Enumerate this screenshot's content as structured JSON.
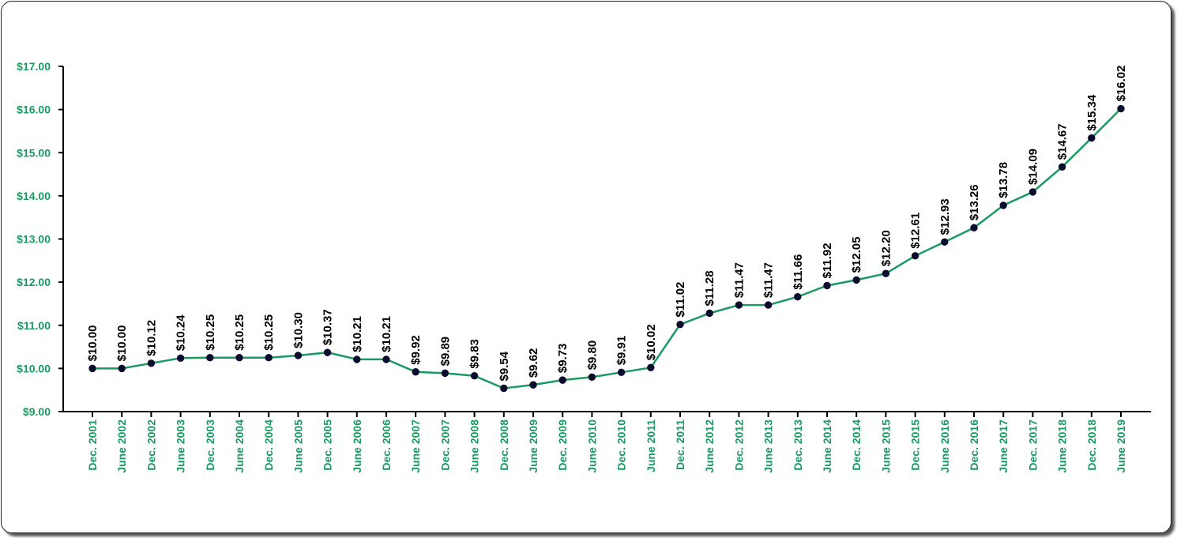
{
  "chart_data": {
    "type": "line",
    "title": "",
    "xlabel": "",
    "ylabel": "",
    "ylim": [
      9,
      17
    ],
    "yticks": [
      "$9.00",
      "$10.00",
      "$11.00",
      "$12.00",
      "$13.00",
      "$14.00",
      "$15.00",
      "$16.00",
      "$17.00"
    ],
    "grid": false,
    "legend": "none",
    "colors": {
      "line": "#1a9a62",
      "marker": "#0b0b2e",
      "axis_text": "#1a9a62",
      "data_label": "#000000"
    },
    "categories": [
      "Dec. 2001",
      "June 2002",
      "Dec. 2002",
      "June 2003",
      "Dec. 2003",
      "June 2004",
      "Dec. 2004",
      "June 2005",
      "Dec. 2005",
      "June 2006",
      "Dec. 2006",
      "June 2007",
      "Dec. 2007",
      "June 2008",
      "Dec. 2008",
      "June 2009",
      "Dec. 2009",
      "June 2010",
      "Dec. 2010",
      "June 2011",
      "Dec. 2011",
      "June 2012",
      "Dec. 2012",
      "June 2013",
      "Dec. 2013",
      "June 2014",
      "Dec. 2014",
      "June 2015",
      "Dec. 2015",
      "June 2016",
      "Dec. 2016",
      "June 2017",
      "Dec. 2017",
      "June 2018",
      "Dec. 2018",
      "June 2019"
    ],
    "values": [
      10.0,
      10.0,
      10.12,
      10.24,
      10.25,
      10.25,
      10.25,
      10.3,
      10.37,
      10.21,
      10.21,
      9.92,
      9.89,
      9.83,
      9.54,
      9.62,
      9.73,
      9.8,
      9.91,
      10.02,
      11.02,
      11.28,
      11.47,
      11.47,
      11.66,
      11.92,
      12.05,
      12.2,
      12.61,
      12.93,
      13.26,
      13.78,
      14.09,
      14.67,
      15.34,
      16.02
    ],
    "data_labels": [
      "$10.00",
      "$10.00",
      "$10.12",
      "$10.24",
      "$10.25",
      "$10.25",
      "$10.25",
      "$10.30",
      "$10.37",
      "$10.21",
      "$10.21",
      "$9.92",
      "$9.89",
      "$9.83",
      "$9.54",
      "$9.62",
      "$9.73",
      "$9.80",
      "$9.91",
      "$10.02",
      "$11.02",
      "$11.28",
      "$11.47",
      "$11.47",
      "$11.66",
      "$11.92",
      "$12.05",
      "$12.20",
      "$12.61",
      "$12.93",
      "$13.26",
      "$13.78",
      "$14.09",
      "$14.67",
      "$15.34",
      "$16.02"
    ]
  }
}
